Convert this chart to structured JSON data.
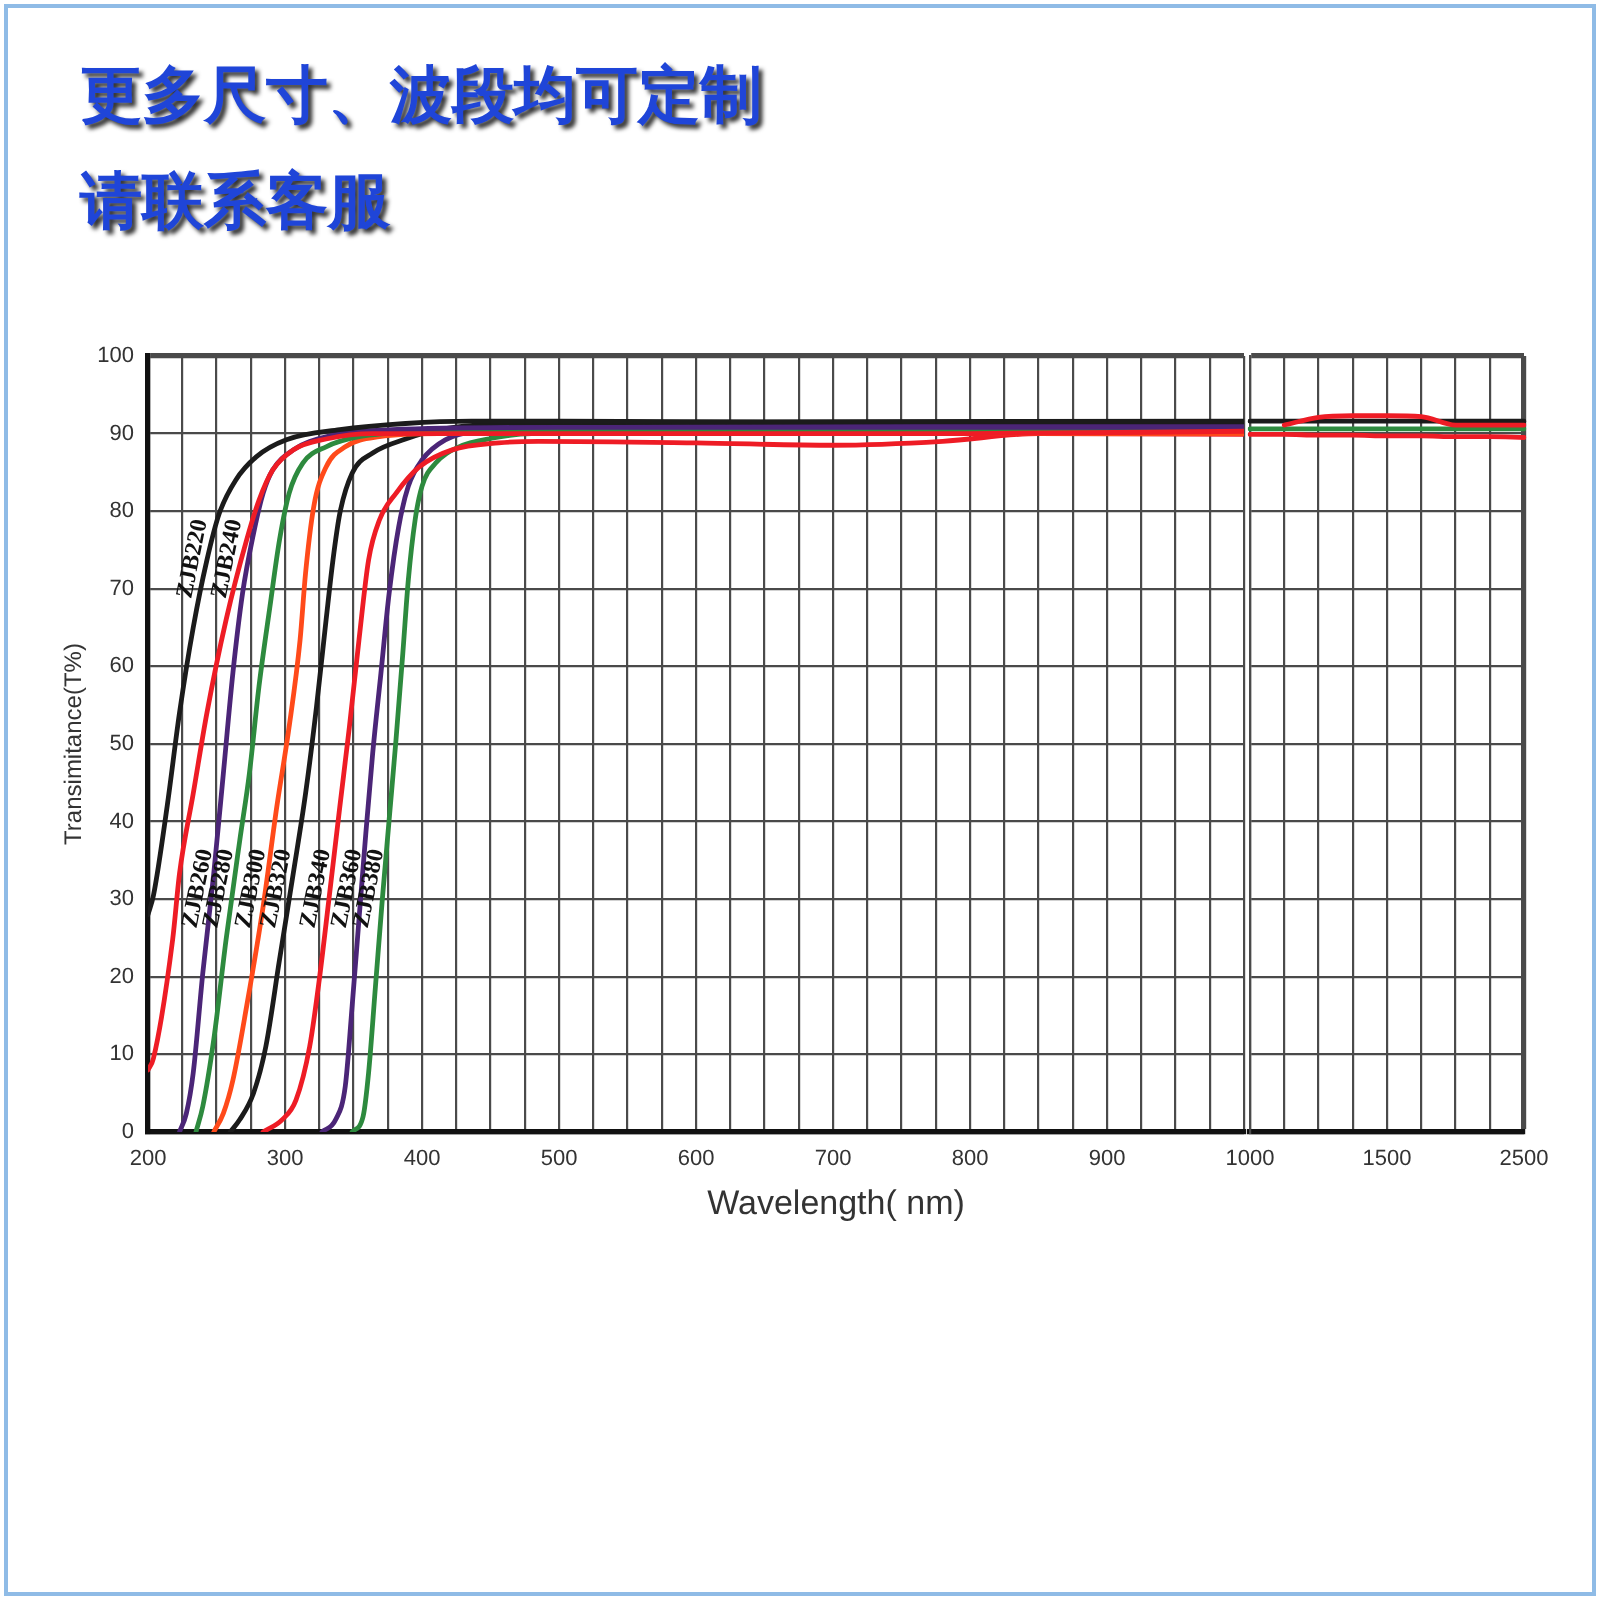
{
  "chart_data": [
    {
      "type": "line",
      "title": "更多尺寸、波段均可定制",
      "subtitle": "请联系客服",
      "xlabel": "Wavelength( nm)",
      "ylabel": "Transimitance(T%)",
      "xlim": [
        200,
        1000
      ],
      "xticks": [
        200,
        {
          "value": 225,
          "label": null
        },
        {
          "value": 250,
          "label": null
        },
        {
          "value": 275,
          "label": null
        },
        300,
        {
          "value": 325,
          "label": null
        },
        {
          "value": 350,
          "label": null
        },
        {
          "value": 375,
          "label": null
        },
        400,
        {
          "value": 425,
          "label": null
        },
        {
          "value": 450,
          "label": null
        },
        {
          "value": 475,
          "label": null
        },
        500,
        {
          "value": 525,
          "label": null
        },
        {
          "value": 550,
          "label": null
        },
        {
          "value": 575,
          "label": null
        },
        600,
        {
          "value": 625,
          "label": null
        },
        {
          "value": 650,
          "label": null
        },
        {
          "value": 675,
          "label": null
        },
        700,
        {
          "value": 725,
          "label": null
        },
        {
          "value": 750,
          "label": null
        },
        {
          "value": 775,
          "label": null
        },
        800,
        {
          "value": 825,
          "label": null
        },
        {
          "value": 850,
          "label": null
        },
        {
          "value": 875,
          "label": null
        },
        900,
        {
          "value": 925,
          "label": null
        },
        {
          "value": 950,
          "label": null
        },
        {
          "value": 975,
          "label": null
        },
        {
          "value": 1000,
          "label": null
        }
      ],
      "ylim": [
        0,
        100
      ],
      "yticks": [
        0,
        10,
        20,
        30,
        40,
        50,
        60,
        70,
        80,
        90,
        100
      ],
      "grid": true,
      "marker": "none",
      "series": [
        {
          "name": "ZJB220",
          "color": "#1b1b1b",
          "x": [
            200,
            204,
            214,
            223,
            233,
            243,
            252,
            264,
            279,
            301,
            340,
            388,
            436,
            480,
            700,
            1000
          ],
          "values": [
            28,
            30.5,
            42,
            54,
            65,
            73.7,
            79.7,
            84,
            87,
            89.2,
            90.5,
            91.3,
            91.6,
            91.6,
            91.5,
            91.5
          ]
        },
        {
          "name": "ZJB240",
          "color": "#ee1c25",
          "x": [
            200,
            204,
            218,
            223,
            233,
            243,
            257,
            272,
            281,
            291,
            306,
            330,
            364,
            500,
            800,
            1000
          ],
          "values": [
            8,
            9.5,
            24.8,
            33.3,
            43.6,
            54,
            66,
            76.3,
            81.4,
            85.3,
            87.9,
            89.3,
            90,
            90,
            90,
            90.3
          ]
        },
        {
          "name": "ZJB260",
          "color": "#4b2577",
          "x": [
            223,
            228,
            233,
            240,
            248,
            255,
            262,
            269,
            277,
            284,
            291,
            306,
            330,
            378,
            500,
            1000
          ],
          "values": [
            0,
            2.4,
            7.6,
            20.5,
            33.3,
            46.2,
            59.2,
            69.4,
            77.1,
            82.3,
            85.3,
            87.9,
            89.6,
            90.5,
            90.8,
            90.8
          ]
        },
        {
          "name": "ZJB280",
          "color": "#2d8a3e",
          "x": [
            235,
            240,
            248,
            257,
            267,
            274,
            281,
            289,
            296,
            303,
            313,
            330,
            354,
            398,
            500,
            1000
          ],
          "values": [
            0,
            3.3,
            11.9,
            24.8,
            37.6,
            46.2,
            57.4,
            67.7,
            76.3,
            82.3,
            86.2,
            88.3,
            89.6,
            90.2,
            90.4,
            90.6
          ]
        },
        {
          "name": "ZJB300",
          "color": "#ff4a1a",
          "x": [
            248,
            255,
            262,
            272,
            284,
            294,
            303,
            311,
            315,
            321,
            330,
            344,
            369,
            412,
            1000
          ],
          "values": [
            0,
            2.4,
            6.7,
            16.2,
            29,
            41.9,
            52.2,
            63.4,
            72,
            80.6,
            85.7,
            88.3,
            89.6,
            90,
            90
          ]
        },
        {
          "name": "ZJB320",
          "color": "#1b1b1b",
          "x": [
            260,
            267,
            277,
            286,
            296,
            306,
            315,
            323,
            330,
            335,
            340,
            349,
            364,
            388,
            412,
            446,
            480,
            1000
          ],
          "values": [
            0,
            1.6,
            5,
            11,
            22.2,
            33.3,
            43.6,
            54.8,
            66,
            73.7,
            79.7,
            84.9,
            87.5,
            89.3,
            90.5,
            91.2,
            91.4,
            91.6
          ]
        },
        {
          "name": "ZJB340",
          "color": "#ee1c25",
          "x": [
            284,
            298,
            308,
            318,
            325,
            332,
            340,
            347,
            354,
            361,
            369,
            381,
            398,
            422,
            456,
            485,
            600,
            700,
            780,
            850,
            1000
          ],
          "values": [
            0,
            1.6,
            4.1,
            11,
            19.6,
            29.9,
            41.9,
            52.2,
            63.4,
            73.7,
            78.9,
            82.3,
            85.7,
            87.9,
            88.8,
            89,
            88.8,
            88.5,
            89,
            90,
            89.9
          ]
        },
        {
          "name": "ZJB360",
          "color": "#4b2577",
          "x": [
            327,
            337,
            344,
            349,
            354,
            359,
            364,
            370,
            376,
            383,
            390,
            400,
            417,
            446,
            480,
            1000
          ],
          "values": [
            0,
            1.6,
            5.9,
            16.2,
            27.4,
            38.5,
            48.8,
            59.1,
            69.4,
            78,
            83.2,
            86.6,
            89.2,
            90.5,
            91.1,
            91.2
          ]
        },
        {
          "name": "ZJB380",
          "color": "#2d8a3e",
          "x": [
            349,
            357,
            361,
            366,
            371,
            376,
            381,
            386,
            390,
            395,
            400,
            410,
            427,
            451,
            480,
            1000
          ],
          "values": [
            0,
            2,
            7.6,
            18.7,
            29.9,
            40.2,
            50.5,
            61.7,
            71.1,
            78.9,
            83.2,
            86.2,
            88.3,
            89.4,
            90,
            90.6
          ]
        }
      ]
    },
    {
      "type": "line",
      "categories": [
        "1000",
        null,
        null,
        null,
        "1500",
        null,
        null,
        null,
        "2500"
      ],
      "ylim": [
        0,
        100
      ],
      "yticks": [
        0,
        10,
        20,
        30,
        40,
        50,
        60,
        70,
        80,
        90,
        100
      ],
      "grid": true,
      "marker": "none",
      "tick_labels": "x",
      "series": [
        {
          "color": "#ee1c25",
          "values": [
            null,
            91.1,
            92.1,
            92.3,
            92.3,
            92.2,
            91.1,
            91.1,
            91.1
          ]
        },
        {
          "color": "#1b1b1b",
          "values": [
            91.6,
            91.6,
            91.6,
            91.6,
            91.6,
            91.6,
            91.6,
            91.6,
            91.6
          ]
        },
        {
          "color": "#2d8a3e",
          "values": [
            90.6,
            90.6,
            90.6,
            90.6,
            90.6,
            90.6,
            90.6,
            90.6,
            90.6
          ]
        },
        {
          "color": "#ee1c25",
          "values": [
            89.9,
            89.9,
            89.8,
            89.8,
            89.7,
            89.7,
            89.6,
            89.6,
            89.5
          ]
        }
      ]
    }
  ]
}
